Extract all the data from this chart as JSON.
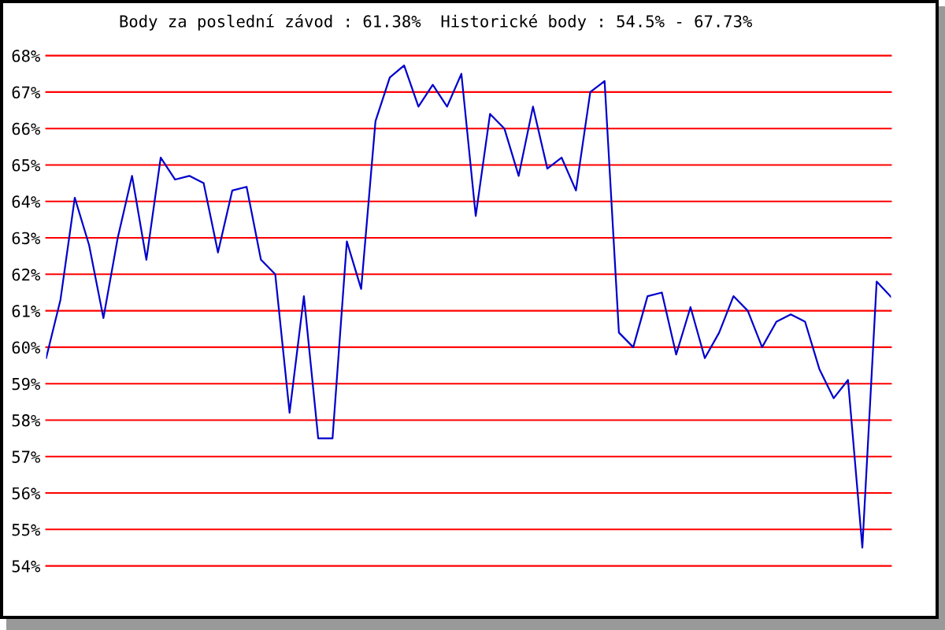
{
  "chart_data": {
    "type": "line",
    "title": "Body za poslední závod : 61.38%  Historické body : 54.5% - 67.73%",
    "categories": [
      null,
      null,
      null,
      null,
      null,
      null,
      null,
      null,
      null,
      null,
      null,
      null,
      null,
      null,
      null,
      null,
      null,
      null,
      null,
      null,
      null,
      null,
      null,
      null,
      null,
      null,
      null,
      null,
      null,
      null,
      null,
      null,
      null,
      null,
      null,
      null,
      null,
      null,
      null,
      null,
      null,
      null,
      null,
      null,
      null,
      null,
      null,
      null,
      null,
      null,
      null,
      null,
      null,
      null,
      null,
      null,
      null,
      null,
      null,
      null
    ],
    "series": [
      {
        "color": "#0000cc",
        "values": [
          59.7,
          61.3,
          64.1,
          62.8,
          60.8,
          63.0,
          64.7,
          62.4,
          65.2,
          64.6,
          64.7,
          64.5,
          62.6,
          64.3,
          64.4,
          62.4,
          62.0,
          58.2,
          61.4,
          57.5,
          57.5,
          62.9,
          61.6,
          66.2,
          67.4,
          67.73,
          66.6,
          67.2,
          66.6,
          67.5,
          63.6,
          66.4,
          66.0,
          64.7,
          66.6,
          64.9,
          65.2,
          64.3,
          67.0,
          67.3,
          60.4,
          60.0,
          61.4,
          61.5,
          59.8,
          61.1,
          59.7,
          60.4,
          61.4,
          61.0,
          60.0,
          60.7,
          60.9,
          60.7,
          59.4,
          58.6,
          59.1,
          54.5,
          61.8,
          61.38
        ]
      }
    ],
    "ylim": [
      54,
      68
    ],
    "yticks": [
      {
        "value": 54,
        "label": "54%"
      },
      {
        "value": 55,
        "label": "55%"
      },
      {
        "value": 56,
        "label": "56%"
      },
      {
        "value": 57,
        "label": "57%"
      },
      {
        "value": 58,
        "label": "58%"
      },
      {
        "value": 59,
        "label": "59%"
      },
      {
        "value": 60,
        "label": "60%"
      },
      {
        "value": 61,
        "label": "61%"
      },
      {
        "value": 62,
        "label": "62%"
      },
      {
        "value": 63,
        "label": "63%"
      },
      {
        "value": 64,
        "label": "64%"
      },
      {
        "value": 65,
        "label": "65%"
      },
      {
        "value": 66,
        "label": "66%"
      },
      {
        "value": 67,
        "label": "67%"
      },
      {
        "value": 68,
        "label": "68%"
      }
    ],
    "grid": "y",
    "tick_labels": "y",
    "marker": "none",
    "line_style": "solid"
  }
}
